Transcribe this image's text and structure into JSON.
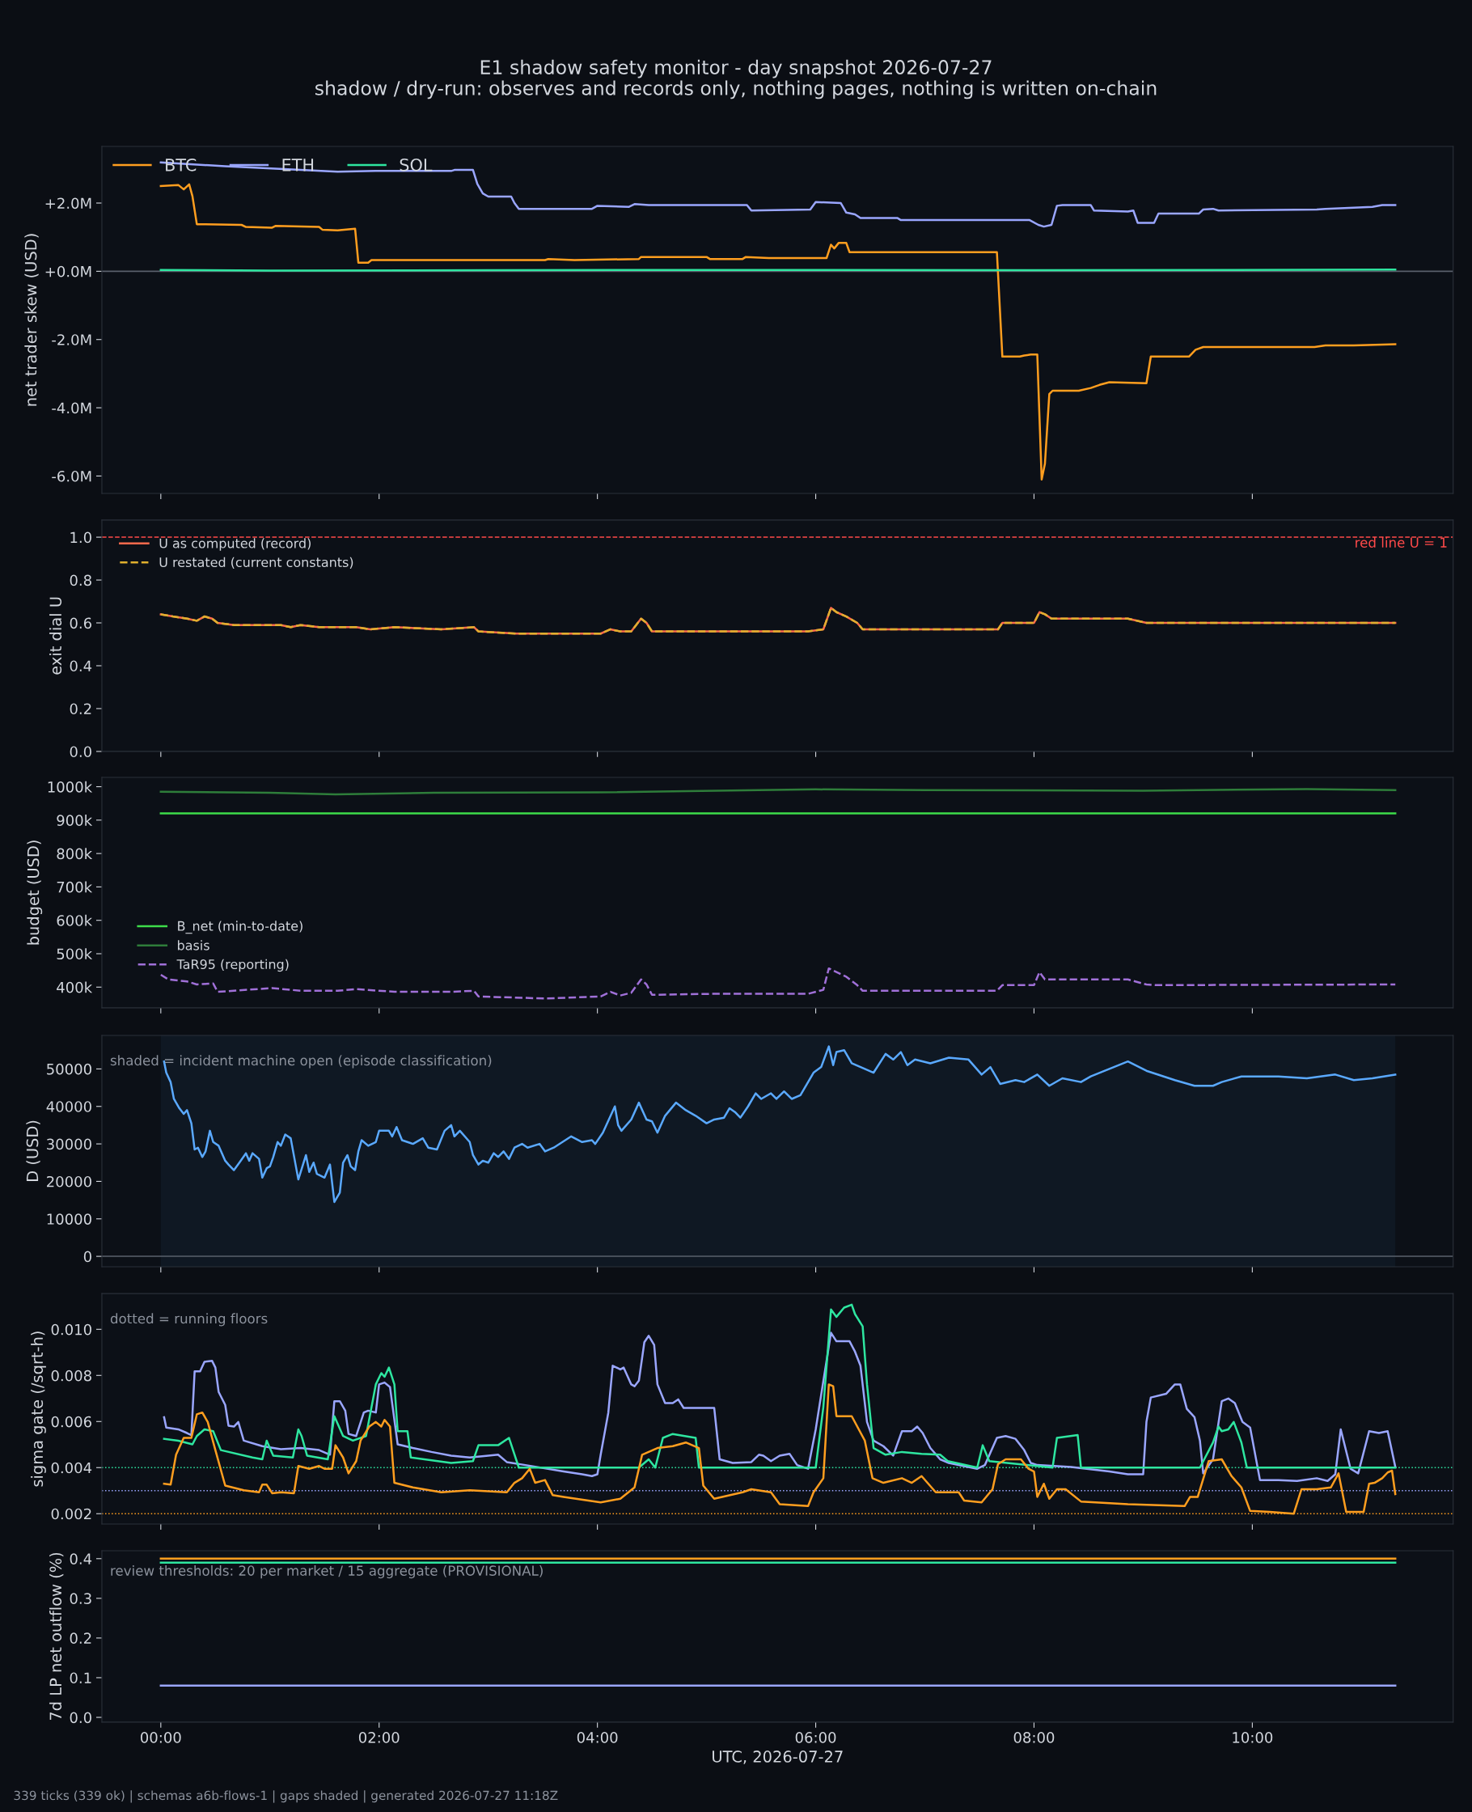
{
  "chart_data": [
    {
      "type": "line",
      "title": "E1 shadow safety monitor - day snapshot 2026-07-27",
      "subtitle": "shadow / dry-run: observes and records only, nothing pages, nothing is written on-chain",
      "ylabel": "net trader skew (USD)",
      "legend": "top left",
      "tick_labels": "y",
      "xlim": [
        -0.54,
        11.84
      ],
      "xticks": [
        0,
        2,
        4,
        6,
        8,
        10
      ],
      "ylim": [
        -6.51,
        3.66
      ],
      "yticks": [
        {
          "value": -6,
          "label": "-6.0M"
        },
        {
          "value": -4,
          "label": "-4.0M"
        },
        {
          "value": -2,
          "label": "-2.0M"
        },
        {
          "value": 0,
          "label": "+0.0M"
        },
        {
          "value": 2,
          "label": "+2.0M"
        }
      ],
      "ref_lines": [
        {
          "axis": "y",
          "value": 0,
          "color": "#5a606c",
          "line_style": "solid"
        }
      ],
      "series": [
        {
          "name": "BTC",
          "color": "#ff9e1f",
          "x": [
            0,
            0.16,
            0.21,
            0.26,
            0.29,
            0.33,
            0.74,
            0.78,
            1.02,
            1.05,
            1.45,
            1.48,
            1.62,
            1.78,
            1.81,
            1.9,
            1.93,
            3.52,
            3.55,
            3.79,
            4.38,
            4.4,
            5.0,
            5.03,
            5.33,
            5.36,
            5.57,
            6.1,
            6.14,
            6.17,
            6.21,
            6.28,
            6.31,
            7.66,
            7.71,
            7.87,
            7.91,
            7.97,
            8.03,
            8.07,
            8.1,
            8.14,
            8.17,
            8.41,
            8.52,
            8.6,
            8.69,
            9.03,
            9.07,
            9.42,
            9.48,
            9.55,
            10.57,
            10.67,
            10.93,
            11.31
          ],
          "values": [
            2.5,
            2.53,
            2.4,
            2.55,
            2.2,
            1.38,
            1.36,
            1.3,
            1.28,
            1.33,
            1.3,
            1.22,
            1.2,
            1.25,
            0.25,
            0.25,
            0.33,
            0.33,
            0.36,
            0.33,
            0.36,
            0.42,
            0.42,
            0.36,
            0.36,
            0.42,
            0.39,
            0.39,
            0.78,
            0.67,
            0.83,
            0.83,
            0.56,
            0.56,
            -2.5,
            -2.5,
            -2.47,
            -2.44,
            -2.44,
            -6.1,
            -5.64,
            -3.6,
            -3.5,
            -3.5,
            -3.42,
            -3.33,
            -3.25,
            -3.28,
            -2.5,
            -2.5,
            -2.3,
            -2.22,
            -2.22,
            -2.17,
            -2.17,
            -2.14
          ]
        },
        {
          "name": "ETH",
          "color": "#9aa6ff",
          "x": [
            0,
            0.59,
            1.28,
            1.62,
            1.97,
            2.66,
            2.69,
            2.86,
            2.9,
            2.95,
            3.0,
            3.21,
            3.24,
            3.28,
            3.95,
            4.0,
            4.29,
            4.34,
            4.47,
            5.37,
            5.41,
            5.95,
            6.0,
            6.23,
            6.28,
            6.36,
            6.41,
            6.75,
            6.78,
            7.96,
            8.04,
            8.09,
            8.16,
            8.21,
            8.26,
            8.52,
            8.55,
            8.86,
            8.91,
            8.95,
            9.1,
            9.14,
            9.51,
            9.55,
            9.64,
            9.69,
            10.59,
            10.67,
            11.1,
            11.19,
            11.31
          ],
          "values": [
            3.19,
            3.08,
            2.97,
            2.92,
            2.94,
            2.94,
            2.97,
            2.97,
            2.56,
            2.28,
            2.19,
            2.19,
            2.0,
            1.83,
            1.83,
            1.92,
            1.89,
            1.97,
            1.94,
            1.94,
            1.78,
            1.81,
            2.03,
            2.0,
            1.72,
            1.67,
            1.56,
            1.56,
            1.5,
            1.5,
            1.36,
            1.31,
            1.36,
            1.92,
            1.94,
            1.94,
            1.78,
            1.75,
            1.78,
            1.42,
            1.42,
            1.69,
            1.69,
            1.81,
            1.83,
            1.78,
            1.81,
            1.83,
            1.89,
            1.94,
            1.94
          ]
        },
        {
          "name": "SOL",
          "color": "#2ee6a0",
          "x": [
            0,
            1,
            3,
            5,
            8,
            11.31
          ],
          "values": [
            0.04,
            0.02,
            0.03,
            0.04,
            0.03,
            0.05
          ]
        }
      ]
    },
    {
      "type": "line",
      "ylabel": "exit dial U",
      "legend": "top left",
      "tick_labels": "y",
      "xlim": [
        -0.54,
        11.84
      ],
      "xticks": [
        0,
        2,
        4,
        6,
        8,
        10
      ],
      "ylim": [
        0,
        1.08
      ],
      "yticks": [
        {
          "value": 0,
          "label": "0.0"
        },
        0.2,
        0.4,
        0.6,
        0.8,
        {
          "value": 1,
          "label": "1.0"
        }
      ],
      "ref_lines": [
        {
          "axis": "y",
          "value": 1.0,
          "label": "red line U = 1",
          "color": "#ff4a4a",
          "line_style": "dashed"
        }
      ],
      "x": [
        0,
        0.11,
        0.24,
        0.33,
        0.4,
        0.47,
        0.52,
        0.67,
        1.1,
        1.19,
        1.28,
        1.45,
        1.79,
        1.92,
        2.14,
        2.57,
        2.87,
        2.91,
        3.26,
        4.03,
        4.12,
        4.21,
        4.31,
        4.4,
        4.45,
        4.5,
        5.07,
        5.93,
        6.07,
        6.14,
        6.19,
        6.28,
        6.38,
        6.43,
        6.62,
        7.48,
        7.67,
        7.71,
        8.0,
        8.05,
        8.1,
        8.16,
        8.86,
        9.03,
        9.12,
        9.72,
        11.31
      ],
      "series": [
        {
          "name": "U as computed (record)",
          "color": "#ff6a4d",
          "values": [
            0.64,
            0.63,
            0.62,
            0.61,
            0.63,
            0.62,
            0.6,
            0.59,
            0.59,
            0.58,
            0.59,
            0.58,
            0.58,
            0.57,
            0.58,
            0.57,
            0.58,
            0.56,
            0.55,
            0.55,
            0.57,
            0.56,
            0.56,
            0.62,
            0.6,
            0.56,
            0.56,
            0.56,
            0.57,
            0.67,
            0.65,
            0.63,
            0.6,
            0.57,
            0.57,
            0.57,
            0.57,
            0.6,
            0.6,
            0.65,
            0.64,
            0.62,
            0.62,
            0.6,
            0.6,
            0.6,
            0.6
          ]
        },
        {
          "name": "U restated (current constants)",
          "color": "#e0b02e",
          "line_style": "dashed",
          "values": [
            0.64,
            0.63,
            0.62,
            0.61,
            0.63,
            0.62,
            0.6,
            0.59,
            0.59,
            0.58,
            0.59,
            0.58,
            0.58,
            0.57,
            0.58,
            0.57,
            0.58,
            0.56,
            0.55,
            0.55,
            0.57,
            0.56,
            0.56,
            0.62,
            0.6,
            0.56,
            0.56,
            0.56,
            0.57,
            0.67,
            0.65,
            0.63,
            0.6,
            0.57,
            0.57,
            0.57,
            0.57,
            0.6,
            0.6,
            0.65,
            0.64,
            0.62,
            0.62,
            0.6,
            0.6,
            0.6,
            0.6
          ]
        }
      ]
    },
    {
      "type": "line",
      "ylabel": "budget (USD)",
      "legend": "bottom left",
      "tick_labels": "y",
      "xlim": [
        -0.54,
        11.84
      ],
      "xticks": [
        0,
        2,
        4,
        6,
        8,
        10
      ],
      "ylim": [
        338,
        1028
      ],
      "yticks": [
        {
          "value": 400,
          "label": "400k"
        },
        {
          "value": 500,
          "label": "500k"
        },
        {
          "value": 600,
          "label": "600k"
        },
        {
          "value": 700,
          "label": "700k"
        },
        {
          "value": 800,
          "label": "800k"
        },
        {
          "value": 900,
          "label": "900k"
        },
        {
          "value": 1000,
          "label": "1000k"
        }
      ],
      "series": [
        {
          "name": "B_net (min-to-date)",
          "color": "#3ddc4a",
          "x": [
            0,
            11.31
          ],
          "values": [
            920,
            920
          ]
        },
        {
          "name": "basis",
          "color": "#2e7d3a",
          "x": [
            0,
            1,
            1.6,
            2.5,
            4,
            6,
            7,
            9,
            10.5,
            11.31
          ],
          "values": [
            985,
            982,
            977,
            982,
            983,
            992,
            990,
            988,
            993,
            990
          ]
        },
        {
          "name": "TaR95 (reporting)",
          "color": "#a070d8",
          "line_style": "dashed",
          "x": [
            0,
            0.07,
            0.24,
            0.33,
            0.48,
            0.52,
            1.02,
            1.19,
            1.28,
            1.62,
            1.79,
            2.14,
            2.66,
            2.87,
            2.91,
            3.52,
            4.03,
            4.12,
            4.21,
            4.31,
            4.4,
            4.45,
            4.5,
            5.07,
            5.93,
            6.07,
            6.12,
            6.19,
            6.28,
            6.38,
            6.43,
            7.66,
            7.71,
            8.0,
            8.05,
            8.1,
            8.16,
            8.86,
            9.03,
            9.12,
            11.31
          ],
          "values": [
            437,
            423,
            417,
            408,
            411,
            386,
            397,
            392,
            389,
            389,
            394,
            386,
            386,
            389,
            372,
            366,
            372,
            386,
            375,
            383,
            423,
            408,
            377,
            380,
            380,
            392,
            456,
            445,
            431,
            406,
            389,
            389,
            406,
            406,
            445,
            423,
            423,
            423,
            408,
            406,
            408
          ]
        }
      ]
    },
    {
      "type": "line",
      "ylabel": "D (USD)",
      "tick_labels": "y",
      "annotations": [
        "shaded = incident machine open (episode classification)"
      ],
      "xlim": [
        -0.54,
        11.84
      ],
      "xticks": [
        0,
        2,
        4,
        6,
        8,
        10
      ],
      "ylim": [
        -2780,
        58950
      ],
      "yticks": [
        0,
        10000,
        20000,
        30000,
        40000,
        50000
      ],
      "ref_lines": [
        {
          "axis": "y",
          "value": 0,
          "color": "#5a606c",
          "line_style": "solid"
        }
      ],
      "bands": [
        {
          "axis": "x",
          "from": 0,
          "to": 11.31,
          "color": "#0f1823"
        }
      ],
      "series": [
        {
          "color": "#5aa9ff",
          "x": [
            0.03,
            0.05,
            0.09,
            0.12,
            0.17,
            0.21,
            0.24,
            0.28,
            0.31,
            0.34,
            0.38,
            0.41,
            0.45,
            0.48,
            0.53,
            0.59,
            0.62,
            0.67,
            0.72,
            0.78,
            0.81,
            0.84,
            0.9,
            0.93,
            0.97,
            1.0,
            1.03,
            1.07,
            1.1,
            1.14,
            1.19,
            1.26,
            1.33,
            1.36,
            1.4,
            1.43,
            1.5,
            1.55,
            1.59,
            1.64,
            1.67,
            1.71,
            1.74,
            1.78,
            1.81,
            1.84,
            1.9,
            1.97,
            2.0,
            2.09,
            2.12,
            2.16,
            2.21,
            2.31,
            2.4,
            2.45,
            2.53,
            2.6,
            2.66,
            2.69,
            2.74,
            2.83,
            2.86,
            2.91,
            2.95,
            3.0,
            3.05,
            3.09,
            3.14,
            3.19,
            3.24,
            3.31,
            3.36,
            3.47,
            3.52,
            3.6,
            3.76,
            3.86,
            3.95,
            3.98,
            4.05,
            4.16,
            4.19,
            4.22,
            4.31,
            4.38,
            4.45,
            4.5,
            4.55,
            4.62,
            4.72,
            4.81,
            4.9,
            5.0,
            5.07,
            5.16,
            5.21,
            5.26,
            5.31,
            5.38,
            5.45,
            5.5,
            5.59,
            5.64,
            5.71,
            5.78,
            5.86,
            5.98,
            6.05,
            6.12,
            6.16,
            6.19,
            6.26,
            6.33,
            6.45,
            6.53,
            6.64,
            6.71,
            6.78,
            6.84,
            6.91,
            7.05,
            7.22,
            7.4,
            7.52,
            7.6,
            7.69,
            7.83,
            7.91,
            8.03,
            8.14,
            8.26,
            8.43,
            8.52,
            8.69,
            8.86,
            9.03,
            9.29,
            9.47,
            9.64,
            9.72,
            9.9,
            10.07,
            10.24,
            10.5,
            10.76,
            10.93,
            11.1,
            11.31
          ],
          "values": [
            52000,
            49000,
            46500,
            42000,
            39500,
            38000,
            39000,
            35500,
            28500,
            29000,
            26500,
            28000,
            33500,
            30500,
            29500,
            25500,
            24500,
            23000,
            25000,
            27500,
            25500,
            27500,
            26000,
            21000,
            23500,
            24000,
            26500,
            30500,
            29500,
            32500,
            31500,
            20500,
            27000,
            22500,
            25000,
            22000,
            21000,
            24500,
            14500,
            17000,
            25000,
            27000,
            24000,
            23000,
            28000,
            31000,
            29500,
            30500,
            33500,
            33500,
            32000,
            34500,
            31000,
            30000,
            31500,
            29000,
            28500,
            33500,
            35000,
            32000,
            33500,
            30500,
            27000,
            24500,
            25500,
            25000,
            27500,
            26500,
            28000,
            26000,
            29000,
            30000,
            29000,
            30000,
            28000,
            29000,
            32000,
            30500,
            31000,
            30000,
            33000,
            40000,
            35000,
            33500,
            36500,
            41000,
            36500,
            36000,
            33000,
            37500,
            41000,
            39000,
            37500,
            35500,
            36500,
            37000,
            39500,
            38500,
            37000,
            40000,
            43500,
            42000,
            43500,
            42000,
            44000,
            42000,
            43000,
            49000,
            50500,
            56000,
            51000,
            54500,
            55000,
            51500,
            50000,
            49000,
            54000,
            52500,
            54500,
            51000,
            52500,
            51500,
            53000,
            52500,
            48500,
            50500,
            46000,
            47000,
            46500,
            48500,
            45500,
            47500,
            46500,
            48000,
            50000,
            52000,
            49500,
            47000,
            45500,
            45500,
            46500,
            48000,
            48000,
            48000,
            47500,
            48500,
            47000,
            47500,
            48500
          ]
        }
      ]
    },
    {
      "type": "line",
      "ylabel": "sigma gate (/sqrt-h)",
      "tick_labels": "y",
      "annotations": [
        "dotted = running floors"
      ],
      "xlim": [
        -0.54,
        11.84
      ],
      "xticks": [
        0,
        2,
        4,
        6,
        8,
        10
      ],
      "ylim": [
        0.00155,
        0.01155
      ],
      "yticks": [
        0.002,
        0.004,
        0.006,
        0.008,
        {
          "value": 0.01,
          "label": "0.010"
        }
      ],
      "ref_lines": [
        {
          "axis": "y",
          "value": 0.004,
          "color": "#2ee6a0",
          "line_style": "dotted"
        },
        {
          "axis": "y",
          "value": 0.003,
          "color": "#9aa6ff",
          "line_style": "dotted"
        },
        {
          "axis": "y",
          "value": 0.002,
          "color": "#ff9e1f",
          "line_style": "dotted"
        }
      ],
      "series": [
        {
          "color": "#9aa6ff",
          "x": [
            0.03,
            0.05,
            0.16,
            0.24,
            0.28,
            0.31,
            0.36,
            0.4,
            0.47,
            0.5,
            0.53,
            0.59,
            0.62,
            0.67,
            0.71,
            0.76,
            0.93,
            1.1,
            1.28,
            1.45,
            1.55,
            1.59,
            1.64,
            1.69,
            1.72,
            1.79,
            1.86,
            1.9,
            1.97,
            2.0,
            2.05,
            2.1,
            2.17,
            2.31,
            2.48,
            2.66,
            2.83,
            3.0,
            3.09,
            3.17,
            3.34,
            3.69,
            3.86,
            3.95,
            4.0,
            4.03,
            4.1,
            4.14,
            4.21,
            4.24,
            4.31,
            4.34,
            4.38,
            4.43,
            4.47,
            4.52,
            4.55,
            4.62,
            4.69,
            4.74,
            4.79,
            5.07,
            5.12,
            5.24,
            5.41,
            5.48,
            5.52,
            5.59,
            5.67,
            5.76,
            5.83,
            5.93,
            6.0,
            6.14,
            6.19,
            6.31,
            6.36,
            6.41,
            6.47,
            6.53,
            6.62,
            6.71,
            6.79,
            6.88,
            6.93,
            6.98,
            7.05,
            7.14,
            7.22,
            7.48,
            7.55,
            7.66,
            7.74,
            7.83,
            7.91,
            7.97,
            8.03,
            8.34,
            8.69,
            8.86,
            9.0,
            9.03,
            9.07,
            9.21,
            9.29,
            9.34,
            9.4,
            9.47,
            9.52,
            9.55,
            9.64,
            9.72,
            9.78,
            9.84,
            9.91,
            9.98,
            10.07,
            10.24,
            10.41,
            10.59,
            10.69,
            10.76,
            10.81,
            10.9,
            10.97,
            11.07,
            11.16,
            11.24,
            11.31
          ],
          "values": [
            0.00619,
            0.00574,
            0.00566,
            0.0055,
            0.00541,
            0.00818,
            0.00818,
            0.00859,
            0.00863,
            0.00834,
            0.00728,
            0.00672,
            0.00582,
            0.00578,
            0.00598,
            0.00517,
            0.00493,
            0.0048,
            0.00485,
            0.00476,
            0.00456,
            0.00688,
            0.00688,
            0.00647,
            0.00546,
            0.00537,
            0.00639,
            0.00647,
            0.00639,
            0.00761,
            0.00769,
            0.00749,
            0.00501,
            0.00485,
            0.00468,
            0.00452,
            0.00444,
            0.00452,
            0.00456,
            0.00424,
            0.00411,
            0.00383,
            0.00371,
            0.00363,
            0.00371,
            0.00456,
            0.00639,
            0.00842,
            0.00826,
            0.00834,
            0.00761,
            0.00753,
            0.00777,
            0.00944,
            0.00972,
            0.00932,
            0.00761,
            0.0068,
            0.0068,
            0.00696,
            0.00659,
            0.00659,
            0.00436,
            0.0042,
            0.00424,
            0.00456,
            0.00452,
            0.00428,
            0.00452,
            0.0046,
            0.00411,
            0.00395,
            0.00566,
            0.00985,
            0.00948,
            0.00948,
            0.00903,
            0.00842,
            0.00598,
            0.00517,
            0.00493,
            0.00452,
            0.00558,
            0.00558,
            0.00578,
            0.0055,
            0.00485,
            0.00436,
            0.0042,
            0.00395,
            0.00411,
            0.00529,
            0.00537,
            0.00525,
            0.00476,
            0.0042,
            0.00411,
            0.00403,
            0.00383,
            0.00371,
            0.00371,
            0.00598,
            0.00704,
            0.0072,
            0.00761,
            0.00761,
            0.00655,
            0.00619,
            0.00517,
            0.00375,
            0.00436,
            0.00688,
            0.007,
            0.0068,
            0.00598,
            0.00574,
            0.00346,
            0.00346,
            0.00342,
            0.00354,
            0.00342,
            0.00371,
            0.00566,
            0.00395,
            0.00375,
            0.00558,
            0.0055,
            0.00558,
            0.00403
          ]
        },
        {
          "color": "#2ee6a0",
          "x": [
            0.03,
            0.16,
            0.29,
            0.33,
            0.4,
            0.48,
            0.55,
            0.84,
            0.93,
            0.97,
            1.03,
            1.21,
            1.26,
            1.29,
            1.34,
            1.53,
            1.59,
            1.67,
            1.76,
            1.88,
            1.97,
            2.02,
            2.05,
            2.09,
            2.14,
            2.17,
            2.26,
            2.29,
            2.66,
            2.86,
            2.91,
            3.09,
            3.19,
            3.28,
            4.38,
            4.47,
            4.53,
            4.6,
            4.69,
            4.9,
            4.93,
            6.0,
            6.07,
            6.14,
            6.19,
            6.26,
            6.33,
            6.36,
            6.43,
            6.47,
            6.53,
            6.64,
            6.79,
            6.97,
            7.14,
            7.21,
            7.48,
            7.53,
            7.59,
            8.17,
            8.21,
            8.4,
            8.43,
            9.52,
            9.64,
            9.69,
            9.72,
            9.78,
            9.83,
            9.9,
            9.95,
            11.31
          ],
          "values": [
            0.00525,
            0.00517,
            0.00501,
            0.00537,
            0.00566,
            0.00558,
            0.00476,
            0.00444,
            0.00436,
            0.00517,
            0.00452,
            0.00444,
            0.00566,
            0.00537,
            0.00452,
            0.00436,
            0.00623,
            0.00537,
            0.00517,
            0.00537,
            0.00761,
            0.0081,
            0.00794,
            0.00834,
            0.00761,
            0.00558,
            0.00558,
            0.00444,
            0.0042,
            0.00428,
            0.00497,
            0.00497,
            0.00529,
            0.004,
            0.004,
            0.00436,
            0.004,
            0.00529,
            0.00546,
            0.00529,
            0.004,
            0.004,
            0.00663,
            0.01086,
            0.01054,
            0.01094,
            0.01107,
            0.01066,
            0.01013,
            0.00761,
            0.00485,
            0.00456,
            0.00468,
            0.0046,
            0.00456,
            0.00428,
            0.004,
            0.00497,
            0.00428,
            0.004,
            0.00529,
            0.00541,
            0.004,
            0.004,
            0.00509,
            0.00578,
            0.00558,
            0.00566,
            0.00598,
            0.00509,
            0.004,
            0.004
          ]
        },
        {
          "color": "#ff9e1f",
          "x": [
            0.03,
            0.09,
            0.14,
            0.21,
            0.28,
            0.33,
            0.38,
            0.43,
            0.5,
            0.59,
            0.76,
            0.9,
            0.93,
            0.97,
            1.02,
            1.1,
            1.22,
            1.26,
            1.36,
            1.45,
            1.5,
            1.57,
            1.6,
            1.67,
            1.72,
            1.79,
            1.83,
            1.91,
            1.97,
            2.02,
            2.05,
            2.1,
            2.14,
            2.31,
            2.57,
            2.83,
            3.17,
            3.24,
            3.31,
            3.38,
            3.43,
            3.52,
            3.59,
            3.69,
            4.03,
            4.21,
            4.34,
            4.41,
            4.55,
            4.69,
            4.81,
            4.93,
            4.97,
            5.07,
            5.33,
            5.41,
            5.59,
            5.67,
            5.93,
            5.98,
            6.07,
            6.12,
            6.16,
            6.19,
            6.33,
            6.45,
            6.52,
            6.62,
            6.79,
            6.88,
            6.97,
            7.1,
            7.31,
            7.36,
            7.52,
            7.62,
            7.67,
            7.74,
            7.88,
            7.95,
            8.0,
            8.03,
            8.09,
            8.14,
            8.21,
            8.29,
            8.43,
            8.86,
            9.38,
            9.43,
            9.5,
            9.6,
            9.72,
            9.81,
            9.9,
            9.98,
            10.16,
            10.38,
            10.45,
            10.59,
            10.72,
            10.79,
            10.86,
            11.02,
            11.07,
            11.12,
            11.19,
            11.24,
            11.28,
            11.31
          ],
          "values": [
            0.0033,
            0.00326,
            0.00456,
            0.00529,
            0.00529,
            0.00631,
            0.00639,
            0.00598,
            0.00476,
            0.00322,
            0.00302,
            0.00293,
            0.00326,
            0.00326,
            0.00289,
            0.00293,
            0.00289,
            0.00407,
            0.00395,
            0.00407,
            0.00395,
            0.00395,
            0.00497,
            0.00444,
            0.00375,
            0.00428,
            0.00517,
            0.00578,
            0.00598,
            0.00578,
            0.00607,
            0.00578,
            0.00334,
            0.00314,
            0.00293,
            0.00302,
            0.00293,
            0.00334,
            0.00354,
            0.00395,
            0.00334,
            0.00346,
            0.00281,
            0.00273,
            0.00249,
            0.00265,
            0.00314,
            0.00456,
            0.00485,
            0.00493,
            0.00509,
            0.00485,
            0.00322,
            0.00265,
            0.00293,
            0.00306,
            0.00293,
            0.00241,
            0.00233,
            0.00293,
            0.00354,
            0.00761,
            0.00753,
            0.00623,
            0.00623,
            0.00517,
            0.00354,
            0.00334,
            0.00354,
            0.00334,
            0.00363,
            0.00293,
            0.00293,
            0.00257,
            0.00249,
            0.00306,
            0.00415,
            0.00436,
            0.00436,
            0.00395,
            0.00383,
            0.00273,
            0.0033,
            0.00265,
            0.00306,
            0.00306,
            0.00253,
            0.00241,
            0.00233,
            0.00273,
            0.00273,
            0.00428,
            0.00436,
            0.00363,
            0.00314,
            0.00212,
            0.00208,
            0.002,
            0.00306,
            0.00306,
            0.00314,
            0.00375,
            0.00208,
            0.00208,
            0.0033,
            0.00334,
            0.00354,
            0.00379,
            0.00387,
            0.00285
          ]
        }
      ]
    },
    {
      "type": "line",
      "ylabel": "7d LP net outflow (%)",
      "xlabel": "UTC, 2026-07-27",
      "annotations": [
        "review thresholds: 20 per market / 15 aggregate (PROVISIONAL)",
        "339 ticks (339 ok) | schemas a6b-flows-1 | gaps shaded | generated 2026-07-27 11:18Z"
      ],
      "xlim": [
        -0.54,
        11.84
      ],
      "xticks": [
        {
          "value": 0,
          "label": "00:00"
        },
        {
          "value": 2,
          "label": "02:00"
        },
        {
          "value": 4,
          "label": "04:00"
        },
        {
          "value": 6,
          "label": "06:00"
        },
        {
          "value": 8,
          "label": "08:00"
        },
        {
          "value": 10,
          "label": "10:00"
        }
      ],
      "ylim": [
        -0.012,
        0.42
      ],
      "yticks": [
        {
          "value": 0,
          "label": "0.0"
        },
        0.1,
        0.2,
        0.3,
        0.4
      ],
      "x": [
        0,
        11.31
      ],
      "series": [
        {
          "color": "#ff9e1f",
          "values": [
            0.4,
            0.4
          ]
        },
        {
          "color": "#2ee6a0",
          "values": [
            0.39,
            0.39
          ]
        },
        {
          "color": "#9aa6ff",
          "values": [
            0.08,
            0.08
          ]
        }
      ]
    }
  ]
}
